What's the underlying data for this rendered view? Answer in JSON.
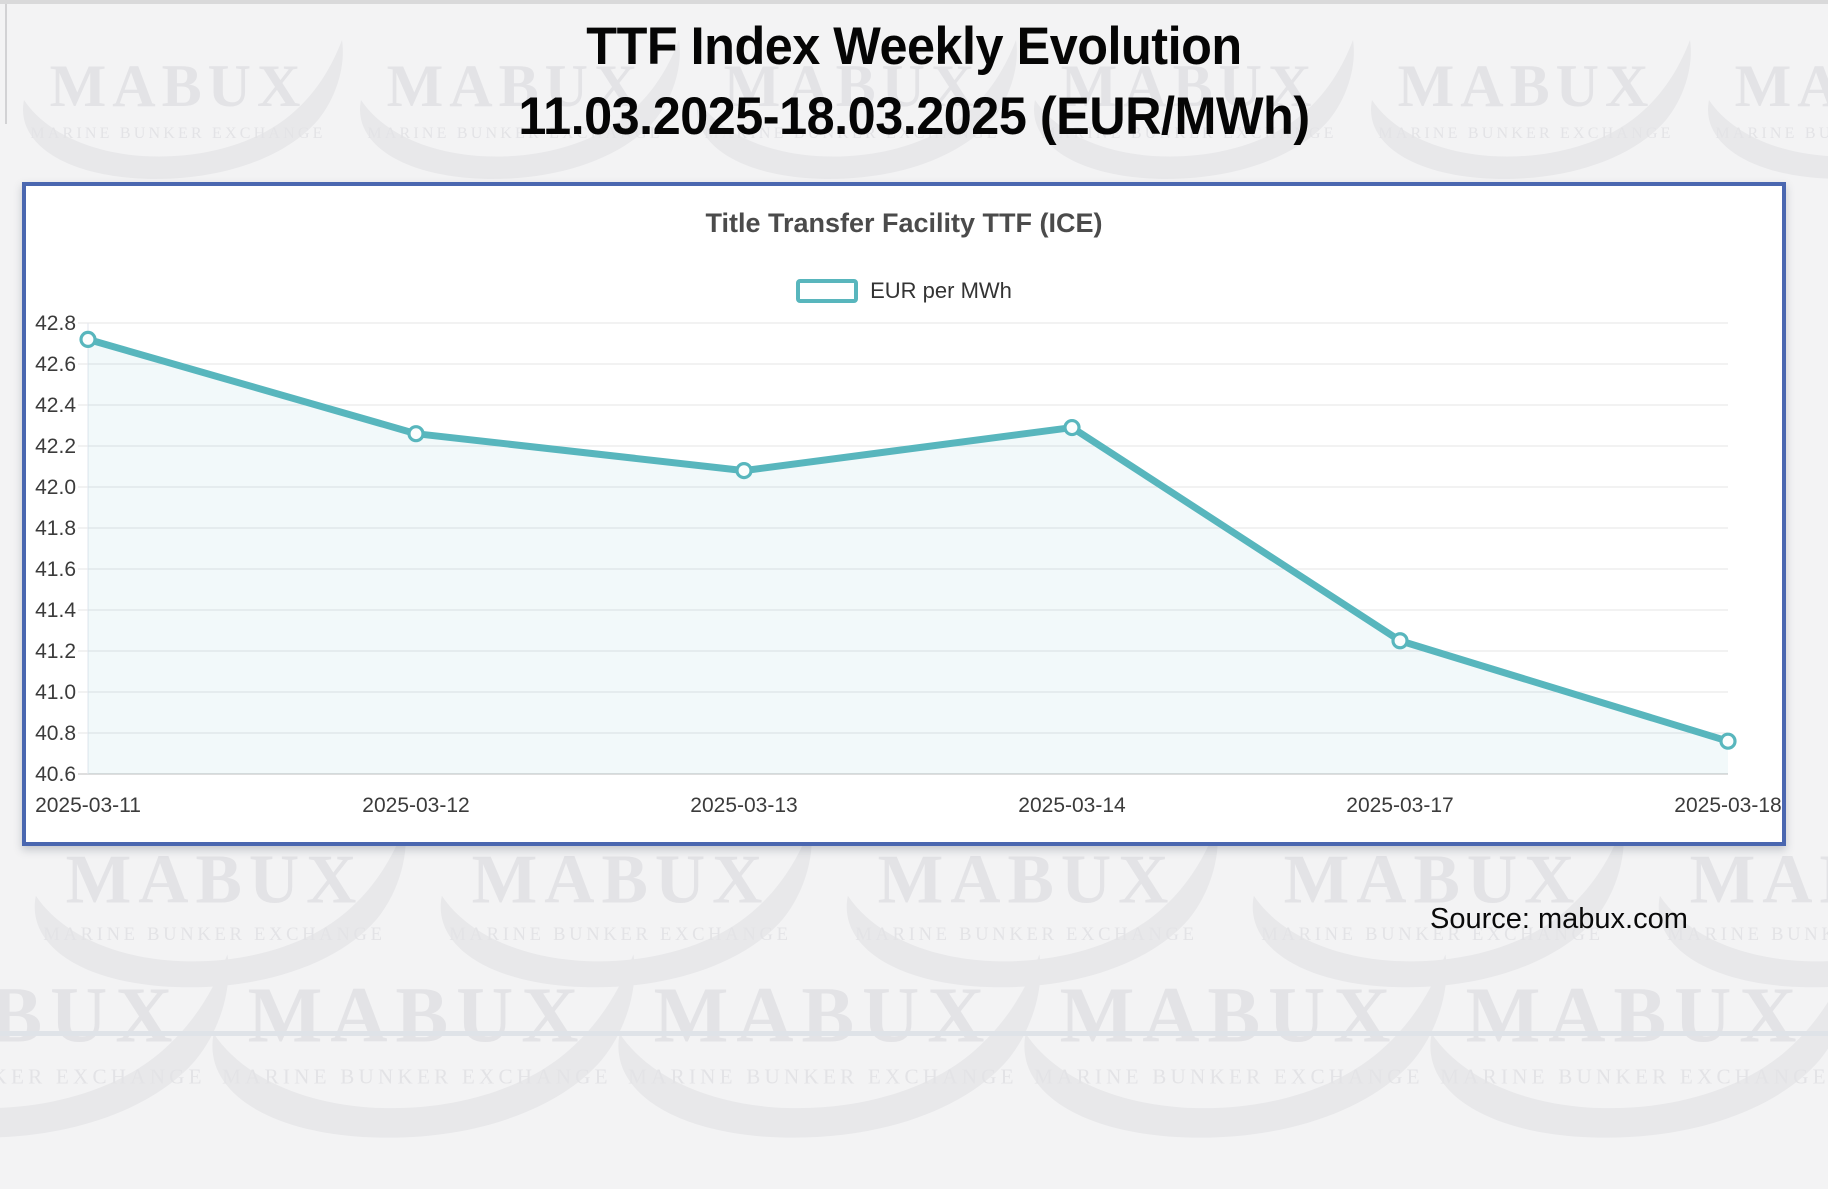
{
  "page": {
    "title_line1": "TTF Index Weekly Evolution",
    "title_line2": "11.03.2025-18.03.2025 (EUR/MWh)",
    "source": "Source: mabux.com"
  },
  "watermark": {
    "brand": "MABUX",
    "subtitle": "MARINE BUNKER EXCHANGE"
  },
  "chart_data": {
    "type": "line",
    "title": "Title Transfer Facility TTF (ICE)",
    "legend": [
      {
        "label": "EUR per MWh",
        "color": "#58b6bd"
      }
    ],
    "legend_position": "top",
    "categories": [
      "2025-03-11",
      "2025-03-12",
      "2025-03-13",
      "2025-03-14",
      "2025-03-17",
      "2025-03-18"
    ],
    "series": [
      {
        "name": "EUR per MWh",
        "values": [
          42.72,
          42.26,
          42.08,
          42.29,
          41.25,
          40.76
        ]
      }
    ],
    "xlabel": "",
    "ylabel": "",
    "ylim": [
      40.6,
      42.8
    ],
    "ytick_step": 0.2,
    "yticks": [
      "42.8",
      "42.6",
      "42.4",
      "42.2",
      "42.0",
      "41.8",
      "41.6",
      "41.4",
      "41.2",
      "41.0",
      "40.8",
      "40.6"
    ],
    "grid": true,
    "marker": "hollow-circle",
    "colors": {
      "line": "#58b6bd",
      "area": "rgba(88,182,189,0.08)",
      "grid": "#e9e9eb",
      "axis": "#c9c9c9",
      "label": "#3b3b3b",
      "frame": "#4a67b0"
    }
  }
}
